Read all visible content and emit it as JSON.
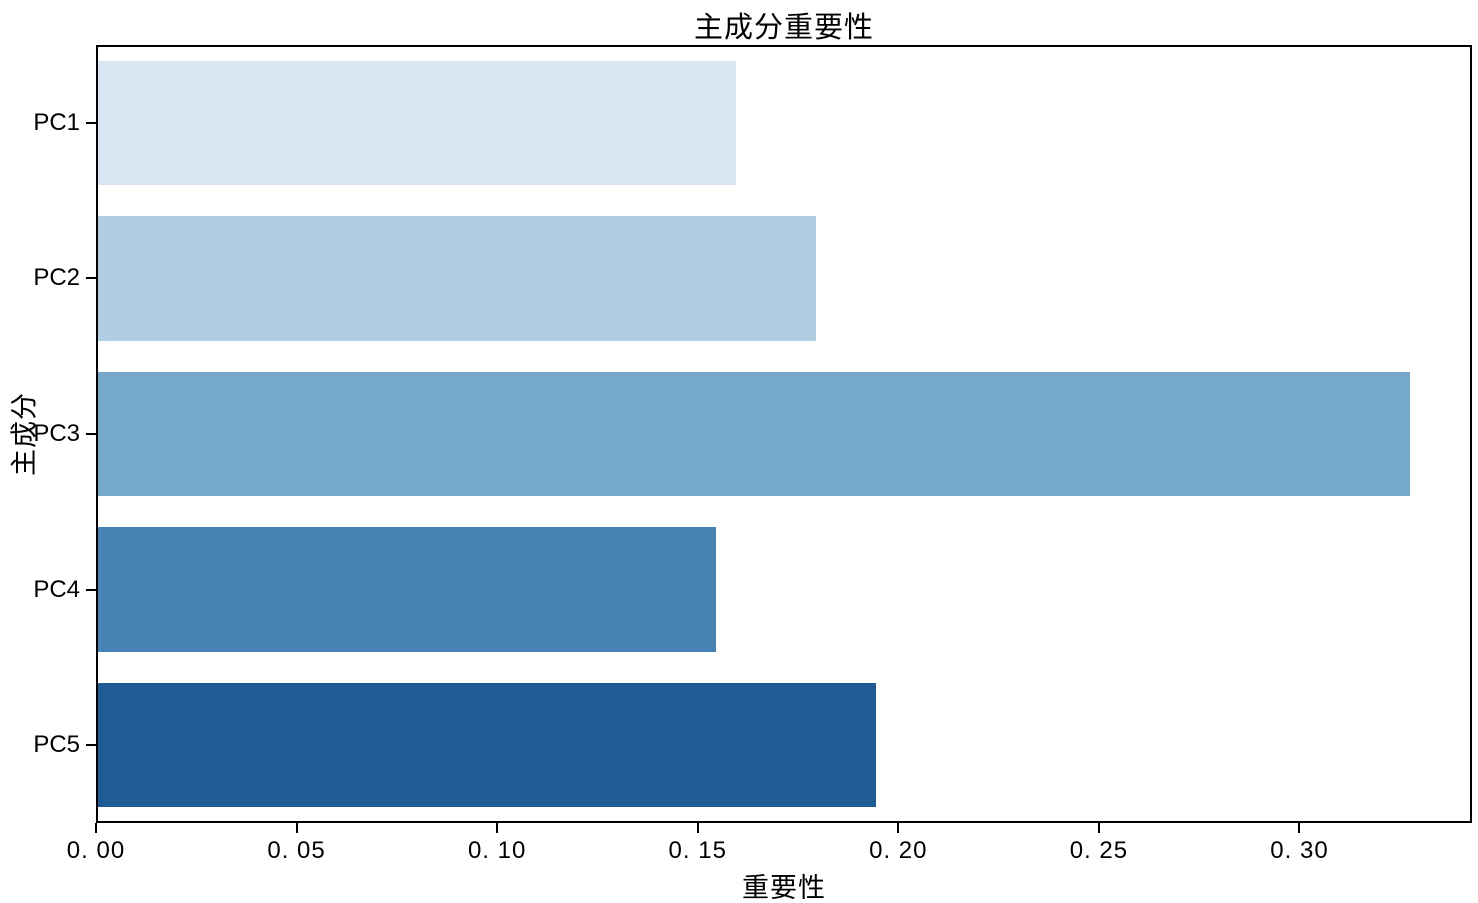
{
  "chart_data": {
    "type": "bar",
    "orientation": "horizontal",
    "title": "主成分重要性",
    "xlabel": "重要性",
    "ylabel": "主成分",
    "categories": [
      "PC1",
      "PC2",
      "PC3",
      "PC4",
      "PC5"
    ],
    "values": [
      0.159,
      0.179,
      0.327,
      0.154,
      0.194
    ],
    "bar_colors": [
      "#d9e5f2",
      "#b1cde2",
      "#75a8ca",
      "#4883b5",
      "#1f5b94"
    ],
    "xlim": [
      0,
      0.343
    ],
    "xticks": {
      "values": [
        0.0,
        0.05,
        0.1,
        0.15,
        0.2,
        0.25,
        0.3
      ],
      "labels": [
        "0. 00",
        "0. 05",
        "0. 10",
        "0. 15",
        "0. 20",
        "0. 25",
        "0. 30"
      ]
    },
    "grid": false,
    "legend": null,
    "axis_color": "#000000",
    "text_color": "#000000",
    "background_color": "#ffffff"
  }
}
